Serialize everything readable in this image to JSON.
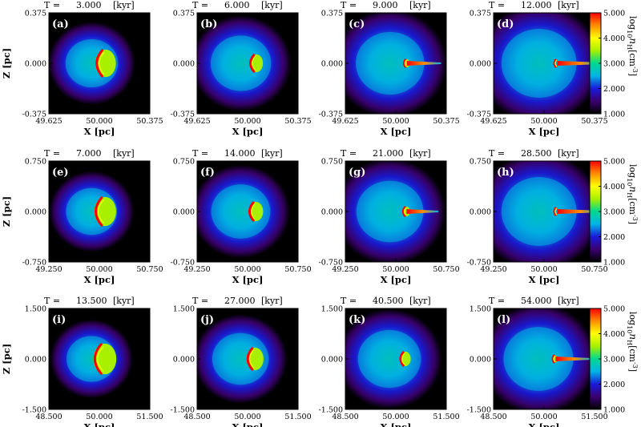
{
  "chart_data": {
    "type": "heatmap",
    "colormap": [
      "#000000",
      "#3a0070",
      "#1a1ad8",
      "#00b4e6",
      "#00d890",
      "#a8f000",
      "#ffff00",
      "#ff8c00",
      "#ff0000"
    ],
    "colorbar": {
      "label_main": "log",
      "label_sub1": "10",
      "label_n": "n",
      "label_sub2": "H",
      "label_unit": "[cm",
      "label_exp": "-3",
      "label_close": "]",
      "range": [
        1.0,
        5.0
      ],
      "ticks": [
        "5.000",
        "4.000",
        "3.000",
        "2.000",
        "1.000"
      ]
    },
    "rows": [
      {
        "xlabel": "X [pc]",
        "ylabel": "Z [pc]",
        "xticks": [
          "49.625",
          "50.000",
          "50.375"
        ],
        "yticks": [
          "0.375",
          "0.000",
          "-0.375"
        ],
        "panels": [
          {
            "label": "(a)",
            "title_prefix": "T =",
            "time": "3.000",
            "unit": "[kyr]",
            "evolution": 0.15
          },
          {
            "label": "(b)",
            "title_prefix": "T =",
            "time": "6.000",
            "unit": "[kyr]",
            "evolution": 0.45
          },
          {
            "label": "(c)",
            "title_prefix": "T =",
            "time": "9.000",
            "unit": "[kyr]",
            "evolution": 0.75
          },
          {
            "label": "(d)",
            "title_prefix": "T =",
            "time": "12.000",
            "unit": "[kyr]",
            "evolution": 1.0
          }
        ]
      },
      {
        "xlabel": "X [pc]",
        "ylabel": "Z [pc]",
        "xticks": [
          "49.250",
          "50.000",
          "50.750"
        ],
        "yticks": [
          "0.750",
          "0.000",
          "-0.750"
        ],
        "panels": [
          {
            "label": "(e)",
            "title_prefix": "T =",
            "time": "7.000",
            "unit": "[kyr]",
            "evolution": 0.1
          },
          {
            "label": "(f)",
            "title_prefix": "T =",
            "time": "14.000",
            "unit": "[kyr]",
            "evolution": 0.4
          },
          {
            "label": "(g)",
            "title_prefix": "T =",
            "time": "21.000",
            "unit": "[kyr]",
            "evolution": 0.7
          },
          {
            "label": "(h)",
            "title_prefix": "T =",
            "time": "28.500",
            "unit": "[kyr]",
            "evolution": 1.0
          }
        ]
      },
      {
        "xlabel": "X [pc]",
        "ylabel": "Z [pc]",
        "xticks": [
          "48.500",
          "50.000",
          "51.500"
        ],
        "yticks": [
          "1.500",
          "0.000",
          "-1.500"
        ],
        "panels": [
          {
            "label": "(i)",
            "title_prefix": "T =",
            "time": "13.500",
            "unit": "[kyr]",
            "evolution": 0.05
          },
          {
            "label": "(j)",
            "title_prefix": "T =",
            "time": "27.000",
            "unit": "[kyr]",
            "evolution": 0.3
          },
          {
            "label": "(k)",
            "title_prefix": "T =",
            "time": "40.500",
            "unit": "[kyr]",
            "evolution": 0.55
          },
          {
            "label": "(l)",
            "title_prefix": "T =",
            "time": "54.000",
            "unit": "[kyr]",
            "evolution": 0.8
          }
        ]
      }
    ]
  }
}
